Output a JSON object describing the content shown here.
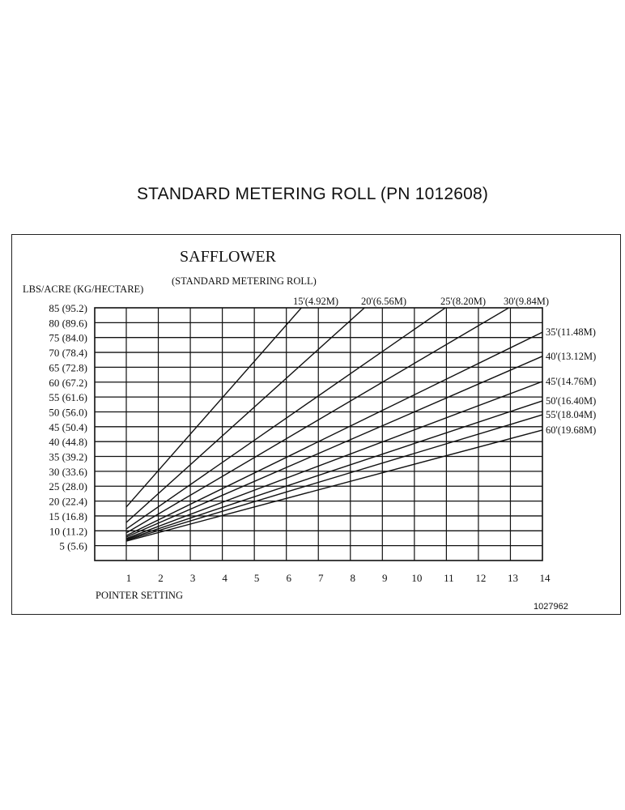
{
  "document": {
    "title": "STANDARD METERING ROLL  (PN  1012608)",
    "figure_id": "1027962"
  },
  "chart_data": {
    "type": "line",
    "title": "SAFFLOWER",
    "subtitle": "(STANDARD METERING ROLL)",
    "xlabel": "POINTER SETTING",
    "ylabel": "LBS/ACRE (KG/HECTARE)",
    "x_ticks": [
      "1",
      "2",
      "3",
      "4",
      "5",
      "6",
      "7",
      "8",
      "9",
      "10",
      "11",
      "12",
      "13",
      "14"
    ],
    "y_ticks": [
      {
        "value": 85,
        "label": "85 (95.2)"
      },
      {
        "value": 80,
        "label": "80 (89.6)"
      },
      {
        "value": 75,
        "label": "75 (84.0)"
      },
      {
        "value": 70,
        "label": "70 (78.4)"
      },
      {
        "value": 65,
        "label": "65 (72.8)"
      },
      {
        "value": 60,
        "label": "60 (67.2)"
      },
      {
        "value": 55,
        "label": "55 (61.6)"
      },
      {
        "value": 50,
        "label": "50 (56.0)"
      },
      {
        "value": 45,
        "label": "45 (50.4)"
      },
      {
        "value": 40,
        "label": "40 (44.8)"
      },
      {
        "value": 35,
        "label": "35 (39.2)"
      },
      {
        "value": 30,
        "label": "30 (33.6)"
      },
      {
        "value": 25,
        "label": "25 (28.0)"
      },
      {
        "value": 20,
        "label": "20 (22.4)"
      },
      {
        "value": 15,
        "label": "15 (16.8)"
      },
      {
        "value": 10,
        "label": "10 (11.2)"
      },
      {
        "value": 5,
        "label": "5 (5.6)"
      }
    ],
    "xlim": [
      0,
      14
    ],
    "ylim": [
      0,
      85
    ],
    "grid": true,
    "legend_position": "line-end labels (top and right)",
    "series": [
      {
        "name": "15'(4.92M)",
        "points": [
          [
            1,
            18.0
          ],
          [
            6.47,
            85
          ]
        ],
        "label_pos": "top"
      },
      {
        "name": "20'(6.56M)",
        "points": [
          [
            1,
            12.8
          ],
          [
            8.44,
            85
          ]
        ],
        "label_pos": "top"
      },
      {
        "name": "25'(8.20M)",
        "points": [
          [
            1,
            10.6
          ],
          [
            10.97,
            85
          ]
        ],
        "label_pos": "top"
      },
      {
        "name": "30'(9.84M)",
        "points": [
          [
            1,
            9.3
          ],
          [
            12.95,
            85
          ]
        ],
        "label_pos": "top"
      },
      {
        "name": "35'(11.48M)",
        "points": [
          [
            1,
            8.4
          ],
          [
            14,
            76.8
          ]
        ],
        "label_pos": "right"
      },
      {
        "name": "40'(13.12M)",
        "points": [
          [
            1,
            7.9
          ],
          [
            14,
            68.7
          ]
        ],
        "label_pos": "right"
      },
      {
        "name": "45'(14.76M)",
        "points": [
          [
            1,
            7.4
          ],
          [
            14,
            60.2
          ]
        ],
        "label_pos": "right"
      },
      {
        "name": "50'(16.40M)",
        "points": [
          [
            1,
            7.1
          ],
          [
            14,
            53.7
          ]
        ],
        "label_pos": "right"
      },
      {
        "name": "55'(18.04M)",
        "points": [
          [
            1,
            6.8
          ],
          [
            14,
            49.0
          ]
        ],
        "label_pos": "right"
      },
      {
        "name": "60'(19.68M)",
        "points": [
          [
            1,
            6.5
          ],
          [
            14,
            43.9
          ]
        ],
        "label_pos": "right"
      }
    ]
  }
}
